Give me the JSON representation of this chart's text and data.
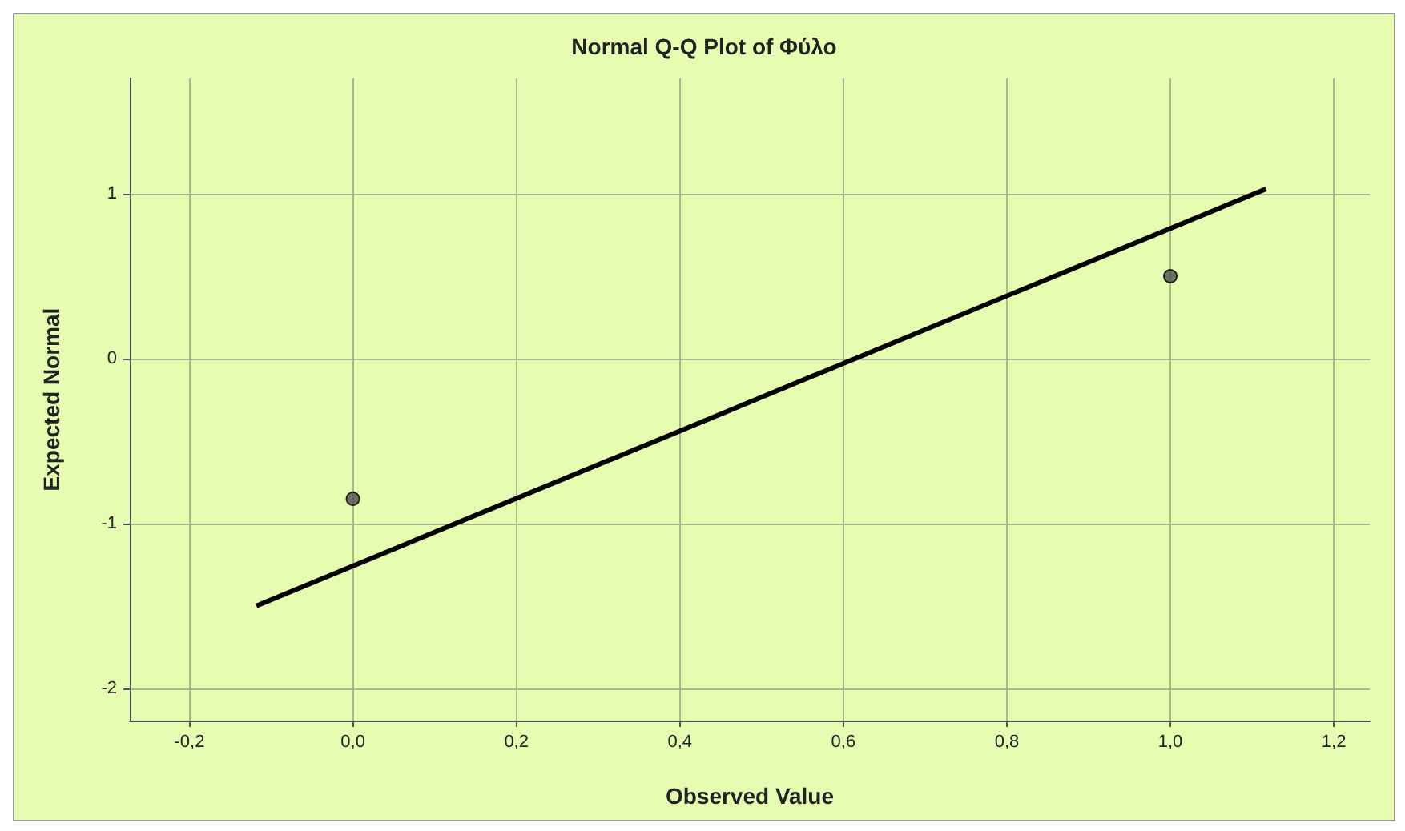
{
  "chart_data": {
    "type": "scatter",
    "title": "Normal Q-Q Plot of Φύλο",
    "xlabel": "Observed Value",
    "ylabel": "Expected Normal",
    "xlim": [
      -0.273,
      1.244
    ],
    "ylim": [
      -2.196,
      1.7
    ],
    "xticks": [
      {
        "value": -0.2,
        "label": "-0,2"
      },
      {
        "value": 0,
        "label": "0,0"
      },
      {
        "value": 0.2,
        "label": "0,2"
      },
      {
        "value": 0.4,
        "label": "0,4"
      },
      {
        "value": 0.6,
        "label": "0,6"
      },
      {
        "value": 0.8,
        "label": "0,8"
      },
      {
        "value": 1,
        "label": "1,0"
      },
      {
        "value": 1.2,
        "label": "1,2"
      }
    ],
    "yticks": [
      -2,
      -1,
      0,
      1
    ],
    "grid": true,
    "marker": "circle",
    "series": [
      {
        "color": "#4d4d4d",
        "x": [
          0,
          1
        ],
        "values": [
          -0.85,
          0.5
        ]
      },
      {
        "type": "line",
        "color": "#000000",
        "x": [
          -0.118,
          1.117
        ],
        "values": [
          -1.5,
          1.03
        ],
        "marker": "none",
        "line_style": "solid"
      }
    ]
  }
}
